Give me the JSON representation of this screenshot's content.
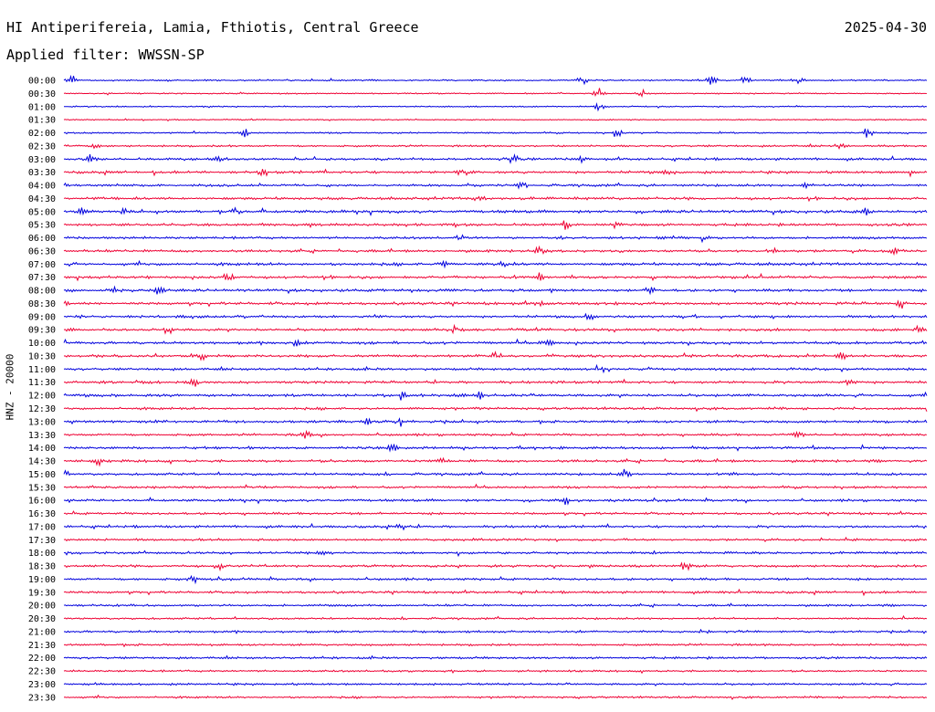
{
  "header": {
    "title": "HI Antiperifereia, Lamia, Fthiotis, Central Greece",
    "date": "2025-04-30",
    "filter": "Applied filter: WWSSN-SP",
    "channel": "HNZ - 20000"
  },
  "colors": {
    "background": "#ffffff",
    "trace_even": "#0000dd",
    "trace_odd": "#ee0033",
    "text": "#000000"
  },
  "chart_data": {
    "type": "line",
    "description_kind": "helicorder seismogram",
    "rows": [
      {
        "label": "00:00",
        "activity": 0.15,
        "events": [
          0.01,
          0.6,
          0.75,
          0.79,
          0.85
        ]
      },
      {
        "label": "00:30",
        "activity": 0.1,
        "events": [
          0.62,
          0.67
        ]
      },
      {
        "label": "01:00",
        "activity": 0.1,
        "events": [
          0.62
        ]
      },
      {
        "label": "01:30",
        "activity": 0.08,
        "events": []
      },
      {
        "label": "02:00",
        "activity": 0.15,
        "events": [
          0.21,
          0.64,
          0.93
        ]
      },
      {
        "label": "02:30",
        "activity": 0.25,
        "events": [
          0.04,
          0.9
        ]
      },
      {
        "label": "03:00",
        "activity": 0.35,
        "events": [
          0.03,
          0.18,
          0.52,
          0.6
        ]
      },
      {
        "label": "03:30",
        "activity": 0.4,
        "events": [
          0.23,
          0.46,
          0.7,
          0.98
        ]
      },
      {
        "label": "04:00",
        "activity": 0.35,
        "events": [
          0.0,
          0.53,
          0.86
        ]
      },
      {
        "label": "04:30",
        "activity": 0.4,
        "events": [
          0.48
        ]
      },
      {
        "label": "05:00",
        "activity": 0.45,
        "events": [
          0.02,
          0.07,
          0.2,
          0.93
        ]
      },
      {
        "label": "05:30",
        "activity": 0.4,
        "events": [
          0.58,
          0.64
        ]
      },
      {
        "label": "06:00",
        "activity": 0.35,
        "events": [
          0.46,
          0.74
        ]
      },
      {
        "label": "06:30",
        "activity": 0.4,
        "events": [
          0.55,
          0.82,
          0.96
        ]
      },
      {
        "label": "07:00",
        "activity": 0.45,
        "events": [
          0.44,
          0.51
        ]
      },
      {
        "label": "07:30",
        "activity": 0.4,
        "events": [
          0.19,
          0.55
        ]
      },
      {
        "label": "08:00",
        "activity": 0.4,
        "events": [
          0.06,
          0.11,
          0.68
        ]
      },
      {
        "label": "08:30",
        "activity": 0.45,
        "events": [
          0.0,
          0.55,
          0.97
        ]
      },
      {
        "label": "09:00",
        "activity": 0.35,
        "events": [
          0.61
        ]
      },
      {
        "label": "09:30",
        "activity": 0.4,
        "events": [
          0.12,
          0.45,
          0.99
        ]
      },
      {
        "label": "10:00",
        "activity": 0.4,
        "events": [
          0.27,
          0.56
        ]
      },
      {
        "label": "10:30",
        "activity": 0.4,
        "events": [
          0.16,
          0.5,
          0.9
        ]
      },
      {
        "label": "11:00",
        "activity": 0.35,
        "events": [
          0.62
        ]
      },
      {
        "label": "11:30",
        "activity": 0.4,
        "events": [
          0.15,
          0.91
        ]
      },
      {
        "label": "12:00",
        "activity": 0.45,
        "events": [
          0.39,
          0.48
        ]
      },
      {
        "label": "12:30",
        "activity": 0.35,
        "events": []
      },
      {
        "label": "13:00",
        "activity": 0.4,
        "events": [
          0.35,
          0.39
        ]
      },
      {
        "label": "13:30",
        "activity": 0.35,
        "events": [
          0.28,
          0.85
        ]
      },
      {
        "label": "14:00",
        "activity": 0.35,
        "events": [
          0.38
        ]
      },
      {
        "label": "14:30",
        "activity": 0.4,
        "events": [
          0.04,
          0.44
        ]
      },
      {
        "label": "15:00",
        "activity": 0.35,
        "events": [
          0.0,
          0.65
        ]
      },
      {
        "label": "15:30",
        "activity": 0.3,
        "events": []
      },
      {
        "label": "16:00",
        "activity": 0.35,
        "events": [
          0.58
        ]
      },
      {
        "label": "16:30",
        "activity": 0.35,
        "events": []
      },
      {
        "label": "17:00",
        "activity": 0.35,
        "events": [
          0.39
        ]
      },
      {
        "label": "17:30",
        "activity": 0.3,
        "events": [
          0.48
        ]
      },
      {
        "label": "18:00",
        "activity": 0.35,
        "events": [
          0.3
        ]
      },
      {
        "label": "18:30",
        "activity": 0.35,
        "events": [
          0.18,
          0.72
        ]
      },
      {
        "label": "19:00",
        "activity": 0.35,
        "events": [
          0.15
        ]
      },
      {
        "label": "19:30",
        "activity": 0.35,
        "events": []
      },
      {
        "label": "20:00",
        "activity": 0.3,
        "events": []
      },
      {
        "label": "20:30",
        "activity": 0.25,
        "events": []
      },
      {
        "label": "21:00",
        "activity": 0.3,
        "events": []
      },
      {
        "label": "21:30",
        "activity": 0.3,
        "events": []
      },
      {
        "label": "22:00",
        "activity": 0.3,
        "events": []
      },
      {
        "label": "22:30",
        "activity": 0.25,
        "events": []
      },
      {
        "label": "23:00",
        "activity": 0.3,
        "events": []
      },
      {
        "label": "23:30",
        "activity": 0.25,
        "events": []
      }
    ]
  }
}
